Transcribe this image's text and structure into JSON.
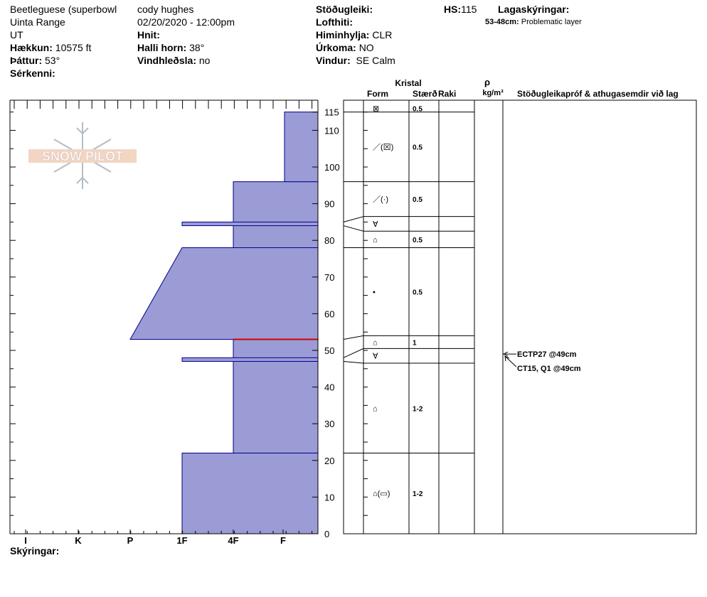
{
  "header": {
    "location_line1": "Beetleguese (superbowl",
    "location_line2": "Uinta Range",
    "location_line3": "UT",
    "observer": "cody hughes",
    "datetime": "02/20/2020 - 12:00pm",
    "elevation_label": "Hækkun:",
    "elevation_value": "10575 ft",
    "aspect_label": "Þáttur:",
    "aspect_value": "53°",
    "features_label": "Sérkenni:",
    "coords_label": "Hnit:",
    "slope_label": "Halli horn:",
    "slope_value": "38°",
    "wind_loading_label": "Vindhleðsla:",
    "wind_loading_value": "no",
    "stability_label": "Stöðugleiki:",
    "air_temp_label": "Lofthiti:",
    "sky_label": "Himinhylja:",
    "sky_value": "CLR",
    "precip_label": "Úrkoma:",
    "precip_value": "NO",
    "wind_label": "Vindur:",
    "wind_value": "SE Calm",
    "hs_label": "HS:",
    "hs_value": "115",
    "layer_notes_label": "Lagaskýringar:",
    "layer_note_range": "53-48cm:",
    "layer_note_text": "Problematic layer"
  },
  "logo_text": "SNOW PILOT",
  "table_headers": {
    "crystal": "Kristal",
    "form": "Form",
    "size": "Stærð",
    "moisture": "Raki",
    "density_symbol": "ρ",
    "density_unit": "kg/m³",
    "tests_notes": "Stöðugleikapróf & athugasemdir við lag"
  },
  "footer": {
    "legend_label": "Skýringar:"
  },
  "colors": {
    "fill": "#9b9bd6",
    "edge": "#00008b",
    "problem_line": "#cc0000"
  },
  "chart_data": {
    "type": "snow-profile",
    "y_axis": {
      "range": [
        0,
        117
      ],
      "ticks": [
        0,
        10,
        20,
        30,
        40,
        50,
        60,
        70,
        80,
        90,
        100,
        110,
        115
      ]
    },
    "hardness_axis": {
      "labels": [
        "I",
        "K",
        "P",
        "1F",
        "4F",
        "F"
      ]
    },
    "hardness_layers": [
      {
        "bottom": 0,
        "top": 22,
        "hardness": "1F"
      },
      {
        "bottom": 22,
        "top": 53,
        "hardness": "4F"
      },
      {
        "bottom": 47,
        "top": 48,
        "hardness": "1F"
      },
      {
        "bottom": 53,
        "top": 78,
        "hardness_bottom": "P+",
        "hardness_top": "1F-"
      },
      {
        "bottom": 78,
        "top": 96,
        "hardness": "4F"
      },
      {
        "bottom": 84,
        "top": 85,
        "hardness": "1F"
      },
      {
        "bottom": 96,
        "top": 115,
        "hardness": "F"
      }
    ],
    "problematic_layer_marker": 53,
    "layers": [
      {
        "bottom": 115,
        "top": 117,
        "form": "⊠",
        "size": "0.5"
      },
      {
        "bottom": 96,
        "top": 115,
        "form": "／(⊠)",
        "size": "0.5"
      },
      {
        "bottom": 86.5,
        "top": 96,
        "form": "／(·)",
        "size": "0.5"
      },
      {
        "bottom": 82.5,
        "top": 86.5,
        "form": "∀",
        "size": ""
      },
      {
        "bottom": 78,
        "top": 82.5,
        "form": "⌂",
        "size": "0.5"
      },
      {
        "bottom": 54,
        "top": 78,
        "form": "•",
        "size": "0.5"
      },
      {
        "bottom": 50.5,
        "top": 54,
        "form": "⌂",
        "size": "1"
      },
      {
        "bottom": 46.5,
        "top": 50.5,
        "form": "∀",
        "size": ""
      },
      {
        "bottom": 22,
        "top": 46.5,
        "form": "⌂",
        "size": "1-2"
      },
      {
        "bottom": 0,
        "top": 22,
        "form": "⌂(▭)",
        "size": "1-2"
      }
    ],
    "tests": [
      {
        "depth": 49,
        "label": "ECTP27 @49cm"
      },
      {
        "depth": 49,
        "label": "CT15, Q1 @49cm"
      }
    ]
  }
}
